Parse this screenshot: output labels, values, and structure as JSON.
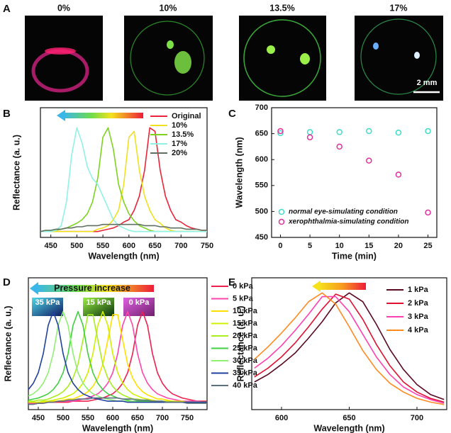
{
  "panel_a": {
    "panel": "A",
    "labels": [
      "0%",
      "10%",
      "13.5%",
      "17%"
    ],
    "scale_bar": "2 mm"
  },
  "chart_data": [
    {
      "type": "line",
      "panel": "B",
      "x_label": "Wavelength (nm)",
      "y_label": "Reflectance (a. u.)",
      "xlim": [
        430,
        750
      ],
      "xticks": [
        450,
        500,
        550,
        600,
        650,
        700,
        750
      ],
      "ylim": [
        0,
        1.1
      ],
      "legend": "upper right",
      "x": [
        430,
        440,
        450,
        460,
        470,
        480,
        490,
        500,
        510,
        520,
        530,
        540,
        550,
        560,
        570,
        580,
        590,
        600,
        610,
        620,
        630,
        640,
        650,
        660,
        670,
        680,
        690,
        700,
        710,
        720,
        730,
        740,
        750
      ],
      "series": [
        {
          "name": "Original",
          "color": "#e8253a",
          "values": [
            0.05,
            0.05,
            0.05,
            0.05,
            0.05,
            0.05,
            0.05,
            0.05,
            0.05,
            0.05,
            0.05,
            0.05,
            0.06,
            0.07,
            0.08,
            0.1,
            0.13,
            0.15,
            0.23,
            0.35,
            0.57,
            0.93,
            0.9,
            0.57,
            0.35,
            0.23,
            0.15,
            0.13,
            0.1,
            0.08,
            0.07,
            0.06,
            0.06
          ]
        },
        {
          "name": "10%",
          "color": "#f0e020",
          "values": [
            0.05,
            0.05,
            0.05,
            0.05,
            0.05,
            0.05,
            0.05,
            0.05,
            0.05,
            0.05,
            0.05,
            0.07,
            0.08,
            0.1,
            0.15,
            0.23,
            0.45,
            0.85,
            0.9,
            0.57,
            0.35,
            0.23,
            0.15,
            0.12,
            0.08,
            0.06,
            0.05,
            0.05,
            0.05,
            0.05,
            0.05,
            0.05,
            0.05
          ]
        },
        {
          "name": "13.5%",
          "color": "#7ed321",
          "values": [
            0.05,
            0.05,
            0.06,
            0.06,
            0.07,
            0.08,
            0.1,
            0.12,
            0.15,
            0.2,
            0.3,
            0.5,
            0.85,
            0.93,
            0.75,
            0.45,
            0.3,
            0.2,
            0.14,
            0.1,
            0.08,
            0.06,
            0.05,
            0.05,
            0.05,
            0.05,
            0.05,
            0.05,
            0.05,
            0.05,
            0.05,
            0.05,
            0.05
          ]
        },
        {
          "name": "17%",
          "color": "#8ff2e4",
          "values": [
            0.05,
            0.05,
            0.05,
            0.06,
            0.1,
            0.3,
            0.7,
            0.93,
            0.8,
            0.6,
            0.5,
            0.45,
            0.35,
            0.25,
            0.15,
            0.1,
            0.08,
            0.06,
            0.05,
            0.05,
            0.05,
            0.05,
            0.05,
            0.05,
            0.05,
            0.05,
            0.05,
            0.05,
            0.05,
            0.05,
            0.05,
            0.05,
            0.05
          ]
        },
        {
          "name": "20%",
          "color": "#607060",
          "values": [
            0.05,
            0.06,
            0.06,
            0.07,
            0.07,
            0.08,
            0.08,
            0.09,
            0.09,
            0.1,
            0.1,
            0.1,
            0.11,
            0.11,
            0.11,
            0.11,
            0.11,
            0.11,
            0.11,
            0.11,
            0.1,
            0.1,
            0.1,
            0.09,
            0.09,
            0.08,
            0.08,
            0.08,
            0.07,
            0.07,
            0.07,
            0.06,
            0.06
          ]
        }
      ]
    },
    {
      "type": "scatter",
      "panel": "C",
      "x_label": "Time (min)",
      "y_label": "Wavelength (nm)",
      "xlim": [
        -1.5,
        26.5
      ],
      "xticks": [
        0,
        5,
        10,
        15,
        20,
        25
      ],
      "ylim": [
        450,
        700
      ],
      "yticks": [
        450,
        500,
        550,
        600,
        650,
        700
      ],
      "legend": "lower left",
      "x": [
        0,
        5,
        10,
        15,
        20,
        25
      ],
      "series": [
        {
          "name": "normal eye-simulating condition",
          "color": "#40dcc8",
          "values": [
            651,
            653,
            653,
            655,
            652,
            655
          ]
        },
        {
          "name": "xerophthalmia-simulating condition",
          "color": "#e0309a",
          "values": [
            655,
            643,
            625,
            598,
            571,
            498
          ]
        }
      ]
    },
    {
      "type": "line",
      "panel": "D",
      "x_label": "Wavelength (nm)",
      "y_label": "Reflectance (a. u.)",
      "arrow_label": "Pressure increase",
      "insets": [
        "35 kPa",
        "15 kPa",
        "0 kPa"
      ],
      "xlim": [
        430,
        790
      ],
      "xticks": [
        450,
        500,
        550,
        600,
        650,
        700,
        750
      ],
      "ylim": [
        0,
        1.25
      ],
      "legend": "outside right",
      "x": [
        430,
        440,
        450,
        460,
        470,
        480,
        490,
        500,
        510,
        520,
        530,
        540,
        550,
        560,
        570,
        580,
        590,
        600,
        610,
        620,
        630,
        640,
        650,
        660,
        670,
        680,
        690,
        700,
        710,
        720,
        730,
        740,
        750,
        760,
        770,
        780,
        790
      ],
      "series": [
        {
          "name": "0 kPa",
          "color": "#ee2050",
          "values": [
            0.06,
            0.06,
            0.06,
            0.06,
            0.07,
            0.07,
            0.07,
            0.07,
            0.07,
            0.08,
            0.08,
            0.08,
            0.08,
            0.09,
            0.1,
            0.11,
            0.13,
            0.15,
            0.19,
            0.25,
            0.35,
            0.53,
            0.8,
            0.93,
            0.8,
            0.53,
            0.35,
            0.25,
            0.19,
            0.15,
            0.13,
            0.11,
            0.1,
            0.09,
            0.08,
            0.08,
            0.08
          ]
        },
        {
          "name": "5 kPa",
          "color": "#ff44aa",
          "values": [
            0.06,
            0.06,
            0.07,
            0.07,
            0.07,
            0.07,
            0.08,
            0.08,
            0.08,
            0.08,
            0.09,
            0.1,
            0.11,
            0.13,
            0.15,
            0.19,
            0.25,
            0.35,
            0.53,
            0.8,
            0.93,
            0.8,
            0.53,
            0.35,
            0.25,
            0.19,
            0.15,
            0.13,
            0.11,
            0.1,
            0.09,
            0.08,
            0.08,
            0.08,
            0.08,
            0.07,
            0.07
          ]
        },
        {
          "name": "10 kPa",
          "color": "#ffe000",
          "values": [
            0.07,
            0.07,
            0.07,
            0.07,
            0.08,
            0.08,
            0.08,
            0.09,
            0.1,
            0.1,
            0.12,
            0.14,
            0.17,
            0.22,
            0.3,
            0.43,
            0.66,
            0.9,
            0.9,
            0.66,
            0.43,
            0.3,
            0.22,
            0.17,
            0.14,
            0.12,
            0.1,
            0.1,
            0.09,
            0.08,
            0.08,
            0.08,
            0.07,
            0.07,
            0.07,
            0.07,
            0.07
          ]
        },
        {
          "name": "15 kPa",
          "color": "#d0f000",
          "values": [
            0.07,
            0.07,
            0.07,
            0.08,
            0.08,
            0.09,
            0.1,
            0.11,
            0.13,
            0.15,
            0.19,
            0.25,
            0.35,
            0.53,
            0.8,
            0.93,
            0.8,
            0.53,
            0.35,
            0.25,
            0.19,
            0.15,
            0.13,
            0.11,
            0.1,
            0.09,
            0.08,
            0.08,
            0.08,
            0.08,
            0.07,
            0.07,
            0.07,
            0.07,
            0.07,
            0.06,
            0.06
          ]
        },
        {
          "name": "20 kPa",
          "color": "#a8ee20",
          "values": [
            0.08,
            0.08,
            0.09,
            0.09,
            0.1,
            0.12,
            0.14,
            0.17,
            0.22,
            0.3,
            0.43,
            0.66,
            0.9,
            0.9,
            0.66,
            0.43,
            0.3,
            0.22,
            0.17,
            0.14,
            0.12,
            0.1,
            0.1,
            0.09,
            0.08,
            0.08,
            0.08,
            0.07,
            0.07,
            0.07,
            0.07,
            0.07,
            0.07,
            0.07,
            0.07,
            0.07,
            0.07
          ]
        },
        {
          "name": "25 kPa",
          "color": "#40d040",
          "values": [
            0.09,
            0.1,
            0.11,
            0.13,
            0.15,
            0.19,
            0.25,
            0.35,
            0.53,
            0.8,
            0.93,
            0.8,
            0.53,
            0.35,
            0.25,
            0.19,
            0.15,
            0.13,
            0.11,
            0.1,
            0.09,
            0.08,
            0.08,
            0.08,
            0.08,
            0.07,
            0.07,
            0.07,
            0.07,
            0.07,
            0.07,
            0.07,
            0.07,
            0.07,
            0.07,
            0.07,
            0.07
          ]
        },
        {
          "name": "30 kPa",
          "color": "#90f070",
          "values": [
            0.13,
            0.15,
            0.19,
            0.25,
            0.35,
            0.53,
            0.8,
            0.93,
            0.8,
            0.53,
            0.35,
            0.25,
            0.19,
            0.15,
            0.13,
            0.11,
            0.1,
            0.09,
            0.08,
            0.08,
            0.08,
            0.08,
            0.07,
            0.07,
            0.07,
            0.07,
            0.07,
            0.07,
            0.07,
            0.07,
            0.07,
            0.07,
            0.07,
            0.07,
            0.07,
            0.07,
            0.07
          ]
        },
        {
          "name": "35 kPa",
          "color": "#2040a0",
          "values": [
            0.19,
            0.25,
            0.35,
            0.53,
            0.8,
            0.93,
            0.8,
            0.53,
            0.35,
            0.25,
            0.19,
            0.15,
            0.13,
            0.11,
            0.1,
            0.09,
            0.08,
            0.08,
            0.08,
            0.08,
            0.07,
            0.07,
            0.07,
            0.07,
            0.07,
            0.07,
            0.07,
            0.07,
            0.07,
            0.07,
            0.07,
            0.07,
            0.07,
            0.07,
            0.07,
            0.07,
            0.07
          ]
        },
        {
          "name": "40 kPa",
          "color": "#5a7080",
          "values": [
            0.05,
            0.05,
            0.06,
            0.06,
            0.07,
            0.07,
            0.08,
            0.08,
            0.09,
            0.09,
            0.1,
            0.1,
            0.1,
            0.11,
            0.11,
            0.11,
            0.11,
            0.11,
            0.11,
            0.1,
            0.1,
            0.1,
            0.09,
            0.09,
            0.09,
            0.08,
            0.08,
            0.08,
            0.07,
            0.07,
            0.07,
            0.07,
            0.06,
            0.06,
            0.06,
            0.06,
            0.06
          ]
        }
      ]
    },
    {
      "type": "line",
      "panel": "E",
      "x_label": "Wavelength (nm)",
      "y_label": "Reflectance (a. u.)",
      "xlim": [
        578,
        722
      ],
      "xticks": [
        600,
        650,
        700
      ],
      "ylim": [
        0,
        1.05
      ],
      "legend": "upper right",
      "x": [
        580,
        590,
        600,
        610,
        620,
        630,
        640,
        650,
        660,
        670,
        680,
        690,
        700,
        710,
        720
      ],
      "series": [
        {
          "name": "1 kPa",
          "color": "#5a0a20",
          "values": [
            0.22,
            0.28,
            0.36,
            0.45,
            0.57,
            0.7,
            0.85,
            0.93,
            0.86,
            0.68,
            0.48,
            0.32,
            0.2,
            0.12,
            0.08
          ]
        },
        {
          "name": "2 kPa",
          "color": "#e01030",
          "values": [
            0.26,
            0.33,
            0.42,
            0.53,
            0.66,
            0.8,
            0.92,
            0.88,
            0.72,
            0.52,
            0.35,
            0.22,
            0.14,
            0.09,
            0.06
          ]
        },
        {
          "name": "3 kPa",
          "color": "#ff40b0",
          "values": [
            0.33,
            0.41,
            0.51,
            0.63,
            0.76,
            0.9,
            0.9,
            0.78,
            0.6,
            0.42,
            0.28,
            0.18,
            0.12,
            0.08,
            0.05
          ]
        },
        {
          "name": "4 kPa",
          "color": "#ff8a20",
          "values": [
            0.4,
            0.5,
            0.61,
            0.73,
            0.86,
            0.93,
            0.84,
            0.66,
            0.47,
            0.32,
            0.21,
            0.14,
            0.09,
            0.06,
            0.04
          ]
        }
      ]
    }
  ]
}
